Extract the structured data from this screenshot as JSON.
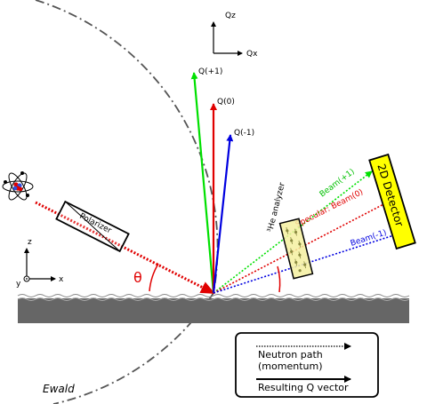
{
  "axes_top": {
    "vertical": "Qz",
    "horizontal": "Qx"
  },
  "axes_left": {
    "z": "z",
    "x": "x",
    "y": "y"
  },
  "q_vectors": [
    {
      "label": "Q(+1)",
      "color": "#00e000"
    },
    {
      "label": "Q(0)",
      "color": "#e00000"
    },
    {
      "label": "Q(-1)",
      "color": "#0000e0"
    }
  ],
  "beams": [
    {
      "label": "Beam(+1)",
      "color": "#00e000"
    },
    {
      "label": "Specular: Beam(0)",
      "color": "#e00000"
    },
    {
      "label": "Beam(-1)",
      "color": "#0000e0"
    }
  ],
  "polarizer_label": "Polarizer",
  "analyzer_label": "³He analyzer",
  "detector_label": "2D Detector",
  "theta_label": "θ",
  "ewald_label": "Ewald",
  "legend": {
    "neutron_path_line1": "Neutron path",
    "neutron_path_line2": "(momentum)",
    "q_vector": "Resulting Q vector"
  },
  "colors": {
    "incident_beam": "#e00000",
    "detector_fill": "#ffff00",
    "analyzer_fill": "#f5f0a0",
    "surface": "#666666",
    "ewald_circle": "#555555"
  }
}
